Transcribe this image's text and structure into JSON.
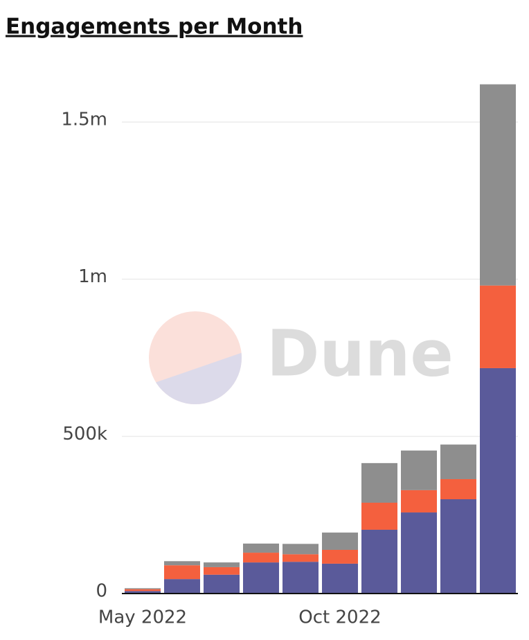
{
  "chart_data": {
    "type": "stacked_bar",
    "title": "Engagements per Month",
    "watermark": "Dune",
    "categories": [
      "May 2022",
      null,
      null,
      null,
      null,
      "Oct 2022",
      null,
      null,
      null,
      null
    ],
    "series": [
      {
        "color": "#5a5a9a",
        "values": [
          8000,
          46000,
          60000,
          99000,
          101000,
          95000,
          203000,
          258000,
          300000,
          717000
        ]
      },
      {
        "color": "#f4603e",
        "values": [
          6000,
          44000,
          24000,
          31000,
          24000,
          44000,
          86000,
          71000,
          64000,
          263000
        ]
      },
      {
        "color": "#8e8e8e",
        "values": [
          3000,
          13000,
          15000,
          29000,
          33000,
          55000,
          126000,
          126000,
          110000,
          640000
        ]
      }
    ],
    "ylim": [
      0,
      1650000
    ],
    "yticks": [
      0,
      {
        "value": 500000,
        "label": "500k"
      },
      {
        "value": 1000000,
        "label": "1m"
      },
      {
        "value": 1500000,
        "label": "1.5m"
      }
    ],
    "grid": true
  }
}
